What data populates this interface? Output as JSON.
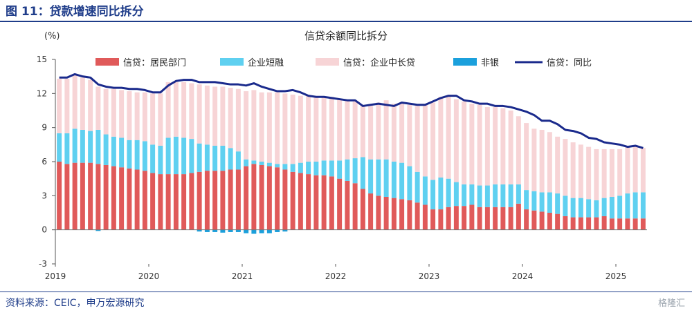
{
  "figure": {
    "title": "图 11：贷款增速同比拆分",
    "source": "资料来源：CEIC，申万宏源研究",
    "watermark": "格隆汇"
  },
  "colors": {
    "household": "#e05a5a",
    "corp_short": "#5fd0f0",
    "corp_long": "#f7d4d6",
    "nonbank": "#1ba0dc",
    "line": "#1a2a8c",
    "brand": "#1f3d8a"
  },
  "chart_data": {
    "type": "bar",
    "title": "信贷余额同比拆分",
    "unit_label": "(%)",
    "ylim": [
      -3,
      15
    ],
    "yticks": [
      "-3",
      "0",
      "3",
      "6",
      "9",
      "12",
      "15"
    ],
    "xtick_labels": [
      "2019",
      "2020",
      "2021",
      "2022",
      "2023",
      "2024",
      "2025"
    ],
    "x_start": "2019-01",
    "n_months": 76,
    "legend_position": "top",
    "series": [
      {
        "name": "信贷：居民部门",
        "kind": "bar",
        "values": [
          6.0,
          5.8,
          5.9,
          5.9,
          5.9,
          5.8,
          5.7,
          5.6,
          5.5,
          5.4,
          5.3,
          5.2,
          5.0,
          4.9,
          4.9,
          4.9,
          4.9,
          5.0,
          5.1,
          5.2,
          5.2,
          5.2,
          5.3,
          5.3,
          5.6,
          5.8,
          5.7,
          5.6,
          5.5,
          5.3,
          5.1,
          5.0,
          4.9,
          4.8,
          4.8,
          4.7,
          4.5,
          4.3,
          4.1,
          3.6,
          3.2,
          3.0,
          2.9,
          2.8,
          2.7,
          2.6,
          2.4,
          2.2,
          1.8,
          1.8,
          2.0,
          2.1,
          2.1,
          2.2,
          2.0,
          2.0,
          2.0,
          2.0,
          2.0,
          2.3,
          1.8,
          1.7,
          1.6,
          1.5,
          1.4,
          1.2,
          1.1,
          1.1,
          1.1,
          1.1,
          1.2,
          1.0,
          1.0,
          1.0,
          1.0,
          1.0
        ]
      },
      {
        "name": "企业短融",
        "kind": "bar",
        "values": [
          2.5,
          2.7,
          3.0,
          2.9,
          2.8,
          3.0,
          2.7,
          2.6,
          2.6,
          2.5,
          2.6,
          2.6,
          2.5,
          2.5,
          3.2,
          3.3,
          3.2,
          3.0,
          2.5,
          2.3,
          2.2,
          2.2,
          1.9,
          1.6,
          0.6,
          0.3,
          0.3,
          0.3,
          0.3,
          0.5,
          0.7,
          0.9,
          1.1,
          1.2,
          1.3,
          1.4,
          1.6,
          1.9,
          2.2,
          2.8,
          3.0,
          3.2,
          3.3,
          3.2,
          3.2,
          3.0,
          2.7,
          2.5,
          2.6,
          2.8,
          2.5,
          2.1,
          1.9,
          1.8,
          1.9,
          1.9,
          2.0,
          2.0,
          2.0,
          1.7,
          1.7,
          1.7,
          1.7,
          1.8,
          1.8,
          1.8,
          1.7,
          1.7,
          1.6,
          1.5,
          1.6,
          1.9,
          2.0,
          2.2,
          2.3,
          2.3
        ]
      },
      {
        "name": "信贷：企业中长贷",
        "kind": "bar",
        "values": [
          4.8,
          4.8,
          4.8,
          4.6,
          4.5,
          3.8,
          4.0,
          4.2,
          4.2,
          4.3,
          4.2,
          4.3,
          4.5,
          4.6,
          4.9,
          4.8,
          4.9,
          4.9,
          5.2,
          5.2,
          5.2,
          5.2,
          5.3,
          5.5,
          6.0,
          6.2,
          6.1,
          6.2,
          6.3,
          6.2,
          6.1,
          5.9,
          5.8,
          5.7,
          5.6,
          5.6,
          5.4,
          5.2,
          5.0,
          4.5,
          4.7,
          5.0,
          5.2,
          5.1,
          5.3,
          5.4,
          5.8,
          6.3,
          6.8,
          7.1,
          7.2,
          7.3,
          7.3,
          7.1,
          7.1,
          6.9,
          6.8,
          6.7,
          6.5,
          6.0,
          5.9,
          5.5,
          5.5,
          5.3,
          5.0,
          5.0,
          4.9,
          4.7,
          4.6,
          4.5,
          4.3,
          4.2,
          4.1,
          4.1,
          4.1,
          3.9
        ]
      },
      {
        "name": "非银",
        "kind": "bar",
        "values": [
          0.0,
          0.0,
          0.0,
          0.0,
          0.0,
          -0.1,
          0.0,
          0.0,
          0.0,
          0.0,
          0.0,
          0.0,
          0.0,
          0.0,
          0.0,
          0.0,
          0.0,
          0.0,
          -0.15,
          -0.2,
          -0.2,
          -0.25,
          -0.2,
          -0.2,
          -0.3,
          -0.35,
          -0.3,
          -0.3,
          -0.2,
          -0.15,
          0.0,
          0.0,
          0.0,
          0.0,
          0.0,
          0.0,
          0.0,
          0.0,
          0.0,
          0.0,
          0.0,
          0.0,
          0.0,
          0.0,
          0.0,
          0.0,
          0.0,
          0.0,
          0.0,
          0.0,
          0.0,
          0.0,
          0.0,
          0.0,
          0.0,
          0.0,
          0.0,
          0.0,
          0.0,
          0.0,
          0.0,
          0.0,
          0.0,
          0.0,
          0.0,
          0.0,
          0.0,
          0.0,
          0.0,
          0.0,
          0.0,
          0.0,
          0.0,
          0.0,
          0.0,
          0.0
        ]
      },
      {
        "name": "信贷：同比",
        "kind": "line",
        "values": [
          13.4,
          13.4,
          13.7,
          13.5,
          13.4,
          12.8,
          12.6,
          12.5,
          12.5,
          12.4,
          12.4,
          12.3,
          12.1,
          12.1,
          12.7,
          13.1,
          13.2,
          13.2,
          13.0,
          13.0,
          13.0,
          12.9,
          12.8,
          12.8,
          12.7,
          12.9,
          12.6,
          12.4,
          12.2,
          12.2,
          12.3,
          12.1,
          11.8,
          11.7,
          11.7,
          11.6,
          11.5,
          11.4,
          11.4,
          10.9,
          11.0,
          11.1,
          11.0,
          10.9,
          11.2,
          11.1,
          11.0,
          11.0,
          11.3,
          11.6,
          11.8,
          11.8,
          11.4,
          11.3,
          11.1,
          11.1,
          10.9,
          10.9,
          10.8,
          10.6,
          10.4,
          10.1,
          9.6,
          9.6,
          9.3,
          8.8,
          8.7,
          8.5,
          8.1,
          8.0,
          7.7,
          7.6,
          7.5,
          7.3,
          7.4,
          7.2
        ]
      }
    ]
  }
}
